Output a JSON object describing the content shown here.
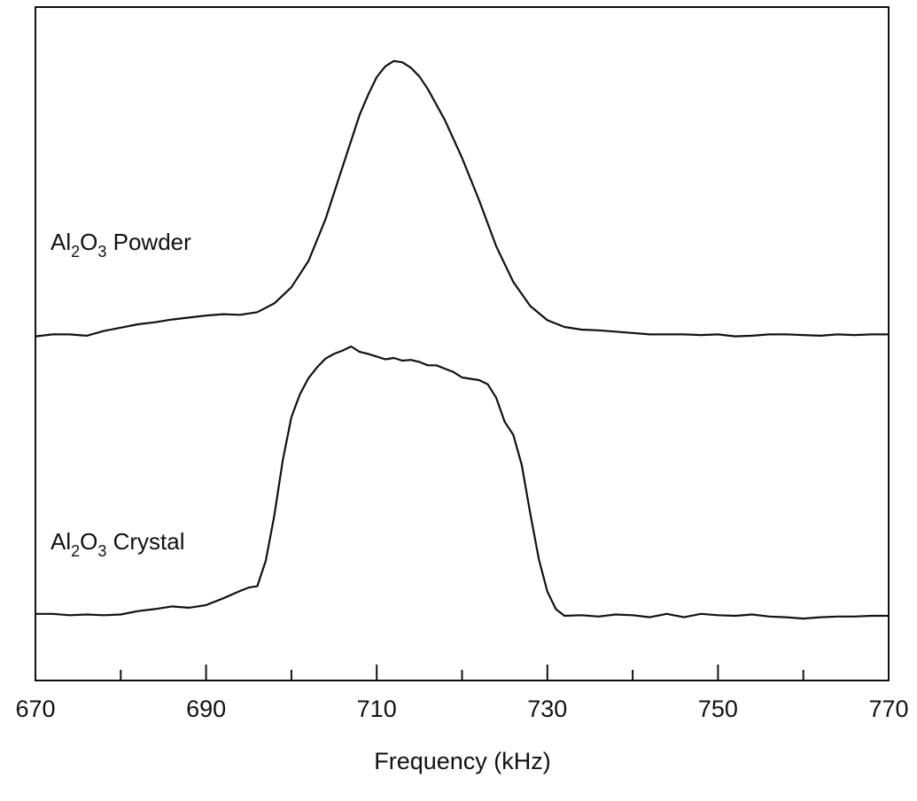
{
  "chart_data": {
    "type": "line",
    "xlabel": "Frequency (kHz)",
    "ylabel": "",
    "xlim": [
      670,
      770
    ],
    "ylim": [
      0,
      1
    ],
    "grid": false,
    "legend": "none",
    "x_major_ticks": [
      670,
      690,
      710,
      730,
      750,
      770
    ],
    "x_minor_ticks": [
      680,
      700,
      720,
      740,
      760
    ],
    "x_tick_labels": [
      "670",
      "690",
      "710",
      "730",
      "750",
      "770"
    ],
    "series_labels": [
      {
        "base": "Al",
        "sub1": "2",
        "mid": "O",
        "sub2": "3",
        "rest": " Powder",
        "series": 0
      },
      {
        "base": "Al",
        "sub1": "2",
        "mid": "O",
        "sub2": "3",
        "rest": " Crystal",
        "series": 1
      }
    ],
    "series": [
      {
        "color": "#111111",
        "x": [
          670,
          672,
          674,
          676,
          678,
          680,
          682,
          684,
          686,
          688,
          690,
          692,
          694,
          696,
          698,
          700,
          702,
          704,
          706,
          708,
          709,
          710,
          711,
          712,
          713,
          714,
          715,
          716,
          718,
          720,
          722,
          724,
          726,
          728,
          730,
          732,
          734,
          736,
          738,
          740,
          742,
          744,
          746,
          748,
          750,
          752,
          754,
          756,
          758,
          760,
          762,
          764,
          766,
          768,
          770
        ],
        "y": [
          0.511,
          0.514,
          0.514,
          0.512,
          0.519,
          0.524,
          0.529,
          0.532,
          0.536,
          0.539,
          0.542,
          0.544,
          0.543,
          0.547,
          0.56,
          0.584,
          0.623,
          0.685,
          0.763,
          0.84,
          0.87,
          0.896,
          0.912,
          0.92,
          0.918,
          0.91,
          0.897,
          0.878,
          0.832,
          0.776,
          0.713,
          0.645,
          0.592,
          0.556,
          0.535,
          0.525,
          0.521,
          0.52,
          0.518,
          0.516,
          0.514,
          0.514,
          0.514,
          0.513,
          0.514,
          0.511,
          0.512,
          0.514,
          0.514,
          0.513,
          0.512,
          0.514,
          0.513,
          0.514,
          0.514
        ]
      },
      {
        "color": "#111111",
        "x": [
          670,
          672,
          674,
          676,
          678,
          680,
          682,
          684,
          686,
          688,
          690,
          692,
          694,
          695,
          696,
          697,
          698,
          699,
          700,
          701,
          702,
          703,
          704,
          705,
          706,
          707,
          708,
          709,
          710,
          711,
          712,
          713,
          714,
          715,
          716,
          717,
          718,
          719,
          720,
          721,
          722,
          723,
          724,
          725,
          726,
          727,
          728,
          729,
          730,
          731,
          732,
          734,
          736,
          738,
          740,
          742,
          744,
          746,
          748,
          750,
          752,
          754,
          756,
          758,
          760,
          762,
          764,
          766,
          768,
          770
        ],
        "y": [
          0.099,
          0.099,
          0.097,
          0.098,
          0.097,
          0.098,
          0.103,
          0.106,
          0.11,
          0.108,
          0.112,
          0.122,
          0.133,
          0.138,
          0.14,
          0.178,
          0.245,
          0.328,
          0.391,
          0.425,
          0.449,
          0.465,
          0.478,
          0.485,
          0.49,
          0.496,
          0.488,
          0.485,
          0.481,
          0.477,
          0.479,
          0.475,
          0.476,
          0.473,
          0.468,
          0.468,
          0.463,
          0.458,
          0.45,
          0.448,
          0.446,
          0.44,
          0.42,
          0.384,
          0.365,
          0.32,
          0.248,
          0.18,
          0.132,
          0.106,
          0.096,
          0.097,
          0.095,
          0.098,
          0.097,
          0.094,
          0.099,
          0.094,
          0.099,
          0.097,
          0.096,
          0.098,
          0.095,
          0.094,
          0.092,
          0.094,
          0.095,
          0.095,
          0.096,
          0.096
        ]
      }
    ]
  }
}
